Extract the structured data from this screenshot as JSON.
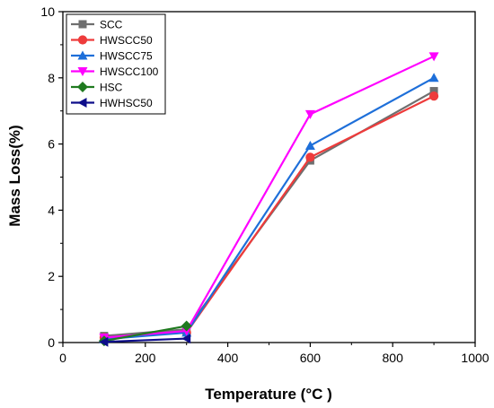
{
  "chart_data": {
    "type": "line",
    "title": "",
    "xlabel": "Temperature (°C )",
    "ylabel": "Mass Loss(%)",
    "xlim": [
      0,
      1000
    ],
    "ylim": [
      0,
      10
    ],
    "x_ticks": [
      0,
      200,
      400,
      600,
      800,
      1000
    ],
    "y_ticks": [
      0,
      2,
      4,
      6,
      8,
      10
    ],
    "grid": false,
    "legend_position": "top-left",
    "series": [
      {
        "name": "SCC",
        "marker": "square",
        "color": "#6f6f6f",
        "x": [
          100,
          300,
          600,
          900
        ],
        "y": [
          0.2,
          0.4,
          5.5,
          7.6
        ]
      },
      {
        "name": "HWSCC50",
        "marker": "circle",
        "color": "#ee3b3b",
        "x": [
          100,
          300,
          600,
          900
        ],
        "y": [
          0.15,
          0.3,
          5.6,
          7.45
        ]
      },
      {
        "name": "HWSCC75",
        "marker": "triangle-up",
        "color": "#1e6fd9",
        "x": [
          100,
          300,
          600,
          900
        ],
        "y": [
          0.1,
          0.3,
          5.95,
          8.0
        ]
      },
      {
        "name": "HWSCC100",
        "marker": "triangle-down",
        "color": "#ff00ff",
        "x": [
          100,
          300,
          600,
          900
        ],
        "y": [
          0.15,
          0.35,
          6.9,
          8.65
        ]
      },
      {
        "name": "HSC",
        "marker": "diamond",
        "color": "#1f7a1f",
        "x": [
          100,
          300
        ],
        "y": [
          0.05,
          0.5
        ]
      },
      {
        "name": "HWHSC50",
        "marker": "triangle-left",
        "color": "#0d0d8a",
        "x": [
          100,
          300
        ],
        "y": [
          0.02,
          0.12
        ]
      }
    ]
  }
}
